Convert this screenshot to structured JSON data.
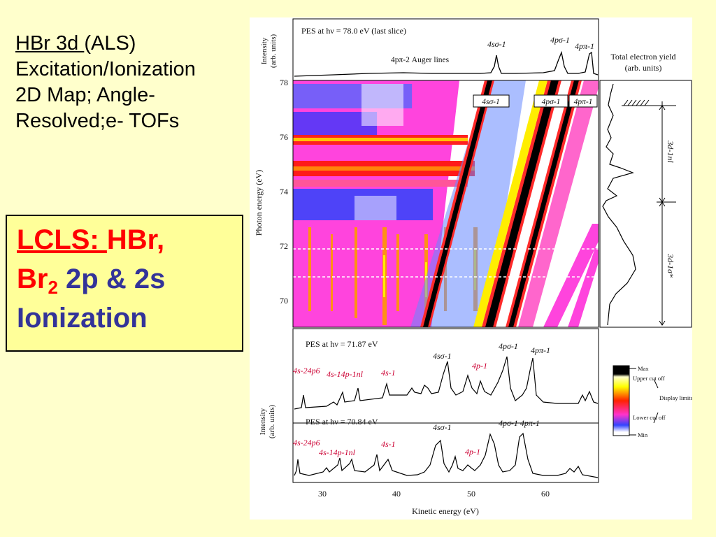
{
  "slide": {
    "title_line1_underlined": "HBr 3d ",
    "title_line1_rest": "(ALS)",
    "title_line2": "Excitation/Ionization",
    "title_line3": "2D Map; Angle-",
    "title_line4": "Resolved;e- TOFs"
  },
  "lcls_box": {
    "line1_underlined": "LCLS: ",
    "line1_rest": "HBr,",
    "line2_main": "Br",
    "line2_sub": "2",
    "line2_rest": " 2p & 2s",
    "line3": "Ionization"
  },
  "figure": {
    "top_panel": {
      "ylabel": "Intensity",
      "ylabel_unit": "(arb. units)",
      "title": "PES at hν = 78.0 eV (last slice)",
      "auger_label": "4pπ-2 Auger lines",
      "peaks": [
        "4sσ-1",
        "4pσ-1",
        "4pπ-1"
      ]
    },
    "tey_panel": {
      "title": "Total electron yield",
      "unit": "(arb. units)",
      "band_upper": "3d-1nl",
      "band_lower": "3d-1σ*"
    },
    "map": {
      "ylabel": "Photon energy (eV)",
      "yticks": [
        "70",
        "72",
        "74",
        "76",
        "78"
      ],
      "boxed_labels": [
        "4sσ-1",
        "4pσ-1",
        "4pπ-1"
      ]
    },
    "mid_panel": {
      "title": "PES at hν = 71.87 eV",
      "black_labels": [
        "4sσ-1",
        "4pσ-1",
        "4pπ-1"
      ],
      "red_labels": [
        "4s-24p6",
        "4s-14p-1nl",
        "4s-1",
        "4p-1"
      ]
    },
    "bottom_panel": {
      "title": "PES at hν = 70.84 eV",
      "black_labels": [
        "4sσ-1",
        "4pσ-1 4pπ-1"
      ],
      "red_labels": [
        "4s-24p6",
        "4s-14p-1nl",
        "4s-1",
        "4p-1"
      ]
    },
    "shared_ylabel": "Intensity",
    "shared_ylabel_unit": "(arb. units)",
    "xlabel": "Kinetic energy (eV)",
    "xticks": [
      "30",
      "40",
      "50",
      "60"
    ],
    "colorbar": {
      "max": "Max",
      "upper": "Upper cut off",
      "display": "Display limits",
      "lower": "Lower cut off",
      "min": "Min"
    }
  },
  "chart_data": [
    {
      "type": "line",
      "title": "PES at hν = 78.0 eV (last slice)",
      "ylabel": "Intensity (arb. units)",
      "x": [
        26,
        40,
        52,
        53.5,
        55,
        60,
        62.5,
        63.5,
        64.5,
        66
      ],
      "y": [
        0.05,
        0.12,
        0.12,
        0.75,
        0.12,
        0.18,
        0.95,
        0.35,
        1.0,
        0.08
      ]
    },
    {
      "type": "heatmap",
      "ylabel": "Photon energy (eV)",
      "xlabel": "Kinetic energy (eV)",
      "xlim": [
        26,
        67
      ],
      "ylim": [
        69,
        78
      ],
      "yticks": [
        70,
        72,
        74,
        76,
        78
      ],
      "xticks": [
        30,
        40,
        50,
        60
      ]
    },
    {
      "type": "line",
      "title": "PES at hν = 71.87 eV",
      "ylabel": "Intensity (arb. units)",
      "x": [
        27,
        32,
        39,
        47,
        50,
        55.5,
        59.5,
        64,
        66
      ],
      "y": [
        0.1,
        0.1,
        0.2,
        0.6,
        0.35,
        0.9,
        0.8,
        0.12,
        0.15
      ]
    },
    {
      "type": "line",
      "title": "PES at hν = 70.84 eV",
      "ylabel": "Intensity (arb. units)",
      "xlabel": "Kinetic energy (eV)",
      "x": [
        26.5,
        32.5,
        38.5,
        40,
        46,
        49,
        54.5,
        58.5,
        63
      ],
      "y": [
        0.45,
        0.25,
        0.38,
        0.32,
        0.85,
        0.4,
        1.0,
        0.95,
        0.15
      ],
      "xticks": [
        30,
        40,
        50,
        60
      ]
    }
  ]
}
